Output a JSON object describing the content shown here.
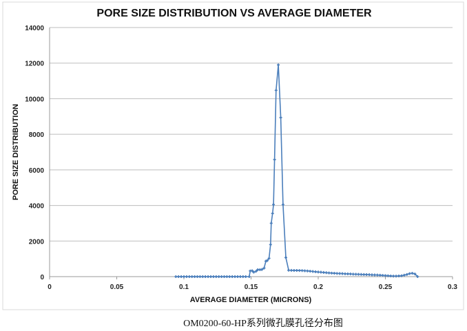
{
  "caption": "OM0200-60-HP系列微孔膜孔径分布图",
  "chart_data": {
    "type": "line",
    "title": "PORE SIZE DISTRIBUTION VS AVERAGE DIAMETER",
    "xlabel": "AVERAGE DIAMETER (MICRONS)",
    "ylabel": "PORE SIZE DISTRIBUTION",
    "xlim": [
      0,
      0.3
    ],
    "ylim": [
      0,
      14000
    ],
    "xticks": [
      "0",
      "0.05",
      "0.1",
      "0.15",
      "0.2",
      "0.25",
      "0.3"
    ],
    "yticks": [
      "0",
      "2000",
      "4000",
      "6000",
      "8000",
      "10000",
      "12000",
      "14000"
    ],
    "grid": "horizontal",
    "color": "#4a7ebb",
    "x": [
      0.094,
      0.096,
      0.098,
      0.1,
      0.102,
      0.104,
      0.106,
      0.108,
      0.11,
      0.112,
      0.114,
      0.116,
      0.118,
      0.12,
      0.122,
      0.124,
      0.126,
      0.128,
      0.13,
      0.132,
      0.134,
      0.136,
      0.138,
      0.14,
      0.142,
      0.144,
      0.146,
      0.1486,
      0.1494,
      0.1508,
      0.152,
      0.1537,
      0.155,
      0.1566,
      0.158,
      0.1597,
      0.161,
      0.162,
      0.1634,
      0.1645,
      0.165,
      0.166,
      0.1667,
      0.1675,
      0.1686,
      0.1703,
      0.1721,
      0.1738,
      0.1759,
      0.178,
      0.18,
      0.182,
      0.184,
      0.186,
      0.188,
      0.19,
      0.192,
      0.194,
      0.196,
      0.198,
      0.2,
      0.202,
      0.204,
      0.206,
      0.208,
      0.21,
      0.212,
      0.214,
      0.216,
      0.218,
      0.22,
      0.222,
      0.224,
      0.226,
      0.228,
      0.23,
      0.232,
      0.234,
      0.236,
      0.238,
      0.24,
      0.242,
      0.244,
      0.246,
      0.248,
      0.25,
      0.252,
      0.254,
      0.256,
      0.258,
      0.26,
      0.262,
      0.264,
      0.266,
      0.268,
      0.27,
      0.272,
      0.274
    ],
    "y": [
      0,
      0,
      0,
      0,
      0,
      0,
      0,
      0,
      0,
      0,
      0,
      0,
      0,
      0,
      0,
      0,
      0,
      0,
      0,
      0,
      0,
      0,
      0,
      0,
      0,
      0,
      0,
      0,
      320,
      330,
      250,
      300,
      390,
      390,
      400,
      480,
      870,
      900,
      1030,
      1800,
      3000,
      3550,
      4050,
      6580,
      10470,
      11900,
      8940,
      4050,
      1070,
      360,
      355,
      350,
      350,
      345,
      340,
      330,
      320,
      305,
      290,
      275,
      260,
      250,
      235,
      220,
      210,
      200,
      190,
      180,
      175,
      170,
      160,
      155,
      150,
      140,
      135,
      130,
      125,
      120,
      115,
      110,
      100,
      95,
      90,
      80,
      70,
      60,
      50,
      40,
      30,
      30,
      40,
      50,
      80,
      120,
      170,
      190,
      150,
      0
    ]
  }
}
